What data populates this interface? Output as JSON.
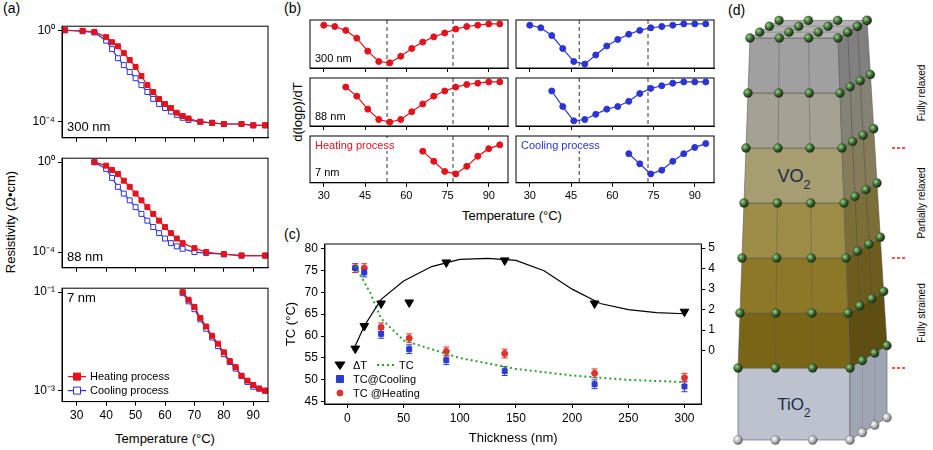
{
  "chart_data": [
    {
      "panel_label": "(a)",
      "type": "line",
      "y_label": "Resistivity (Ω•cm)",
      "x_label": "Temperature (°C)",
      "log": "y",
      "grid": false,
      "subplots": [
        {
          "annotation": "300 nm",
          "tick_labels": "y",
          "xlim": [
            25,
            95
          ],
          "xticks": [
            30,
            40,
            50,
            60,
            70,
            80,
            90
          ],
          "ylim": [
            2e-05,
            1.5
          ],
          "yticks": [
            {
              "value": 1,
              "label": "10⁰"
            },
            {
              "value": 0.0001,
              "label": "10⁻⁴"
            }
          ],
          "x": [
            26,
            32,
            36,
            40,
            42,
            44,
            46,
            48,
            50,
            52,
            54,
            56,
            58,
            60,
            62,
            64,
            66,
            68,
            72,
            76,
            80,
            86,
            90,
            94
          ],
          "series": [
            {
              "name": "Heating process",
              "color": "#e3121b",
              "marker": "square",
              "line_style": "solid",
              "values": [
                1,
                0.95,
                0.85,
                0.5,
                0.3,
                0.2,
                0.1,
                0.05,
                0.025,
                0.01,
                0.004,
                0.002,
                0.001,
                0.0006,
                0.0004,
                0.00025,
                0.00018,
                0.00014,
                0.0001,
                9e-05,
                8e-05,
                8e-05,
                7e-05,
                7e-05
              ]
            },
            {
              "name": "Cooling process",
              "color": "#2b35d6",
              "marker": "open_square",
              "line_style": "solid",
              "values": [
                1,
                0.9,
                0.8,
                0.35,
                0.15,
                0.06,
                0.03,
                0.015,
                0.008,
                0.004,
                0.002,
                0.001,
                0.0006,
                0.0004,
                0.00028,
                0.0002,
                0.00015,
                0.00012,
                0.0001,
                9e-05,
                8e-05,
                8e-05,
                7e-05,
                7e-05
              ]
            }
          ]
        },
        {
          "annotation": "88 nm",
          "tick_labels": "y",
          "xlim": [
            25,
            95
          ],
          "xticks": [
            30,
            40,
            50,
            60,
            70,
            80,
            90
          ],
          "ylim": [
            2e-05,
            1.5
          ],
          "yticks": [
            {
              "value": 1,
              "label": "10⁰"
            },
            {
              "value": 0.0001,
              "label": "10⁻⁴"
            }
          ],
          "x": [
            36,
            40,
            42,
            44,
            46,
            48,
            50,
            52,
            54,
            56,
            58,
            60,
            62,
            64,
            66,
            70,
            74,
            80,
            86,
            94
          ],
          "series": [
            {
              "name": "Heating process",
              "color": "#e3121b",
              "marker": "square",
              "line_style": "solid",
              "values": [
                1,
                0.7,
                0.45,
                0.3,
                0.15,
                0.08,
                0.04,
                0.02,
                0.01,
                0.005,
                0.0025,
                0.0013,
                0.0007,
                0.0004,
                0.00025,
                0.00015,
                0.0001,
                8e-05,
                7e-05,
                7e-05
              ]
            },
            {
              "name": "Cooling process",
              "color": "#2b35d6",
              "marker": "open_square",
              "line_style": "solid",
              "values": [
                1,
                0.5,
                0.2,
                0.08,
                0.04,
                0.02,
                0.01,
                0.005,
                0.0025,
                0.0013,
                0.0007,
                0.0004,
                0.00025,
                0.00018,
                0.00014,
                0.0001,
                9e-05,
                8e-05,
                7e-05,
                7e-05
              ]
            }
          ]
        },
        {
          "annotation": "7 nm",
          "legend": "lower left",
          "xlim": [
            25,
            95
          ],
          "xticks": [
            30,
            40,
            50,
            60,
            70,
            80,
            90
          ],
          "ylim": [
            0.0006,
            0.12
          ],
          "yticks": [
            {
              "value": 0.1,
              "label": "10⁻¹"
            },
            {
              "value": 0.001,
              "label": "10⁻³"
            }
          ],
          "x": [
            66,
            68,
            70,
            72,
            74,
            76,
            78,
            80,
            82,
            84,
            86,
            88,
            90,
            92,
            94
          ],
          "series": [
            {
              "name": "Heating process",
              "color": "#e3121b",
              "marker": "square",
              "line_style": "solid",
              "values": [
                0.1,
                0.07,
                0.05,
                0.03,
                0.02,
                0.013,
                0.009,
                0.006,
                0.004,
                0.003,
                0.002,
                0.0016,
                0.0013,
                0.0011,
                0.001
              ]
            },
            {
              "name": "Cooling process",
              "color": "#2b35d6",
              "marker": "open_square",
              "line_style": "solid",
              "values": [
                0.095,
                0.065,
                0.045,
                0.028,
                0.018,
                0.012,
                0.008,
                0.0055,
                0.0038,
                0.0028,
                0.002,
                0.0015,
                0.0012,
                0.0011,
                0.001
              ]
            }
          ]
        }
      ]
    },
    {
      "panel_label": "(b)",
      "type": "line",
      "y_label": "d(logρ)/dT",
      "x_label": "Temperature (°C)",
      "grid": false,
      "tick_labels": "x",
      "xlim": [
        25,
        97
      ],
      "xticks": [
        30,
        45,
        60,
        75,
        90
      ],
      "ylim": [
        -0.35,
        0.02
      ],
      "yticks": [],
      "rows": [
        "300 nm",
        "88 nm",
        "7 nm"
      ],
      "x": [
        30,
        34,
        38,
        42,
        46,
        50,
        54,
        58,
        62,
        66,
        70,
        74,
        78,
        82,
        86,
        90,
        94
      ],
      "series": [
        {
          "name": "Heating process",
          "color": "#e3121b",
          "marker": "circle",
          "line_style": "solid",
          "vlines": [
            53,
            77
          ],
          "values": [
            [
              -0.02,
              -0.03,
              -0.06,
              -0.12,
              -0.22,
              -0.3,
              -0.31,
              -0.26,
              -0.2,
              -0.15,
              -0.11,
              -0.08,
              -0.05,
              -0.03,
              -0.02,
              -0.01,
              -0.01
            ],
            [
              null,
              null,
              -0.05,
              -0.12,
              -0.22,
              -0.3,
              -0.32,
              -0.3,
              -0.24,
              -0.18,
              -0.12,
              -0.08,
              -0.05,
              -0.03,
              -0.02,
              -0.01,
              -0.01
            ],
            [
              null,
              null,
              null,
              null,
              null,
              null,
              null,
              null,
              null,
              -0.1,
              -0.18,
              -0.26,
              -0.28,
              -0.22,
              -0.14,
              -0.08,
              -0.05
            ]
          ]
        },
        {
          "name": "Cooling process",
          "color": "#2b35d6",
          "marker": "circle",
          "line_style": "solid",
          "vlines": [
            48,
            73
          ],
          "values": [
            [
              -0.02,
              -0.04,
              -0.1,
              -0.2,
              -0.3,
              -0.32,
              -0.25,
              -0.18,
              -0.13,
              -0.09,
              -0.06,
              -0.04,
              -0.03,
              -0.02,
              -0.01,
              -0.01,
              -0.01
            ],
            [
              null,
              null,
              -0.08,
              -0.2,
              -0.31,
              -0.3,
              -0.26,
              -0.22,
              -0.2,
              -0.16,
              -0.1,
              -0.06,
              -0.04,
              -0.02,
              -0.01,
              -0.01,
              -0.01
            ],
            [
              null,
              null,
              null,
              null,
              null,
              null,
              null,
              null,
              null,
              -0.12,
              -0.2,
              -0.28,
              -0.25,
              -0.18,
              -0.12,
              -0.07,
              -0.04
            ]
          ]
        }
      ]
    },
    {
      "panel_label": "(c)",
      "type": "scatter",
      "x_label": "Thickness (nm)",
      "y_label": "TC (°C)",
      "grid": false,
      "legend": "lower left",
      "xlim": [
        -20,
        315
      ],
      "xticks": [
        0,
        50,
        100,
        150,
        200,
        250,
        300
      ],
      "ylim": [
        44.5,
        81
      ],
      "yticks": [
        45,
        50,
        55,
        60,
        65,
        70,
        75,
        80
      ],
      "y2lim": [
        -2.6,
        5.2
      ],
      "y2ticks": [
        0,
        1,
        2,
        3,
        4,
        5
      ],
      "series": [
        {
          "name": "ΔT",
          "axis": "y2",
          "color": "#000000",
          "marker": "triangle_down",
          "line_style": "none",
          "x": [
            7,
            15,
            30,
            55,
            88,
            140,
            220,
            300
          ],
          "values": [
            0.1,
            1.2,
            2.3,
            2.35,
            4.3,
            4.4,
            2.3,
            1.9
          ]
        },
        {
          "axis": "y2",
          "color": "#000000",
          "marker": "none",
          "line_style": "solid",
          "x": [
            5,
            15,
            30,
            50,
            75,
            100,
            125,
            150,
            175,
            200,
            225,
            250,
            275,
            300
          ],
          "values": [
            0,
            1.2,
            2.5,
            3.4,
            4.1,
            4.45,
            4.5,
            4.4,
            3.9,
            3.0,
            2.3,
            2.0,
            1.85,
            1.8
          ]
        },
        {
          "name": "TC",
          "color": "#2ca02c",
          "marker": "none",
          "line_style": "dotted",
          "x": [
            7,
            20,
            30,
            50,
            100,
            150,
            200,
            250,
            300
          ],
          "values": [
            76,
            70,
            64,
            59,
            55,
            52.5,
            51,
            50,
            49.5
          ]
        },
        {
          "name": "TC@Cooling",
          "color": "#2b3bd0",
          "marker": "square",
          "line_style": "none",
          "x": [
            7,
            15,
            30,
            55,
            88,
            140,
            220,
            300
          ],
          "values": [
            75.5,
            74.5,
            60.5,
            57,
            54.5,
            52,
            49,
            48.5
          ],
          "errors": [
            1,
            1,
            1,
            1,
            1,
            1,
            1,
            1.2
          ]
        },
        {
          "name": "TC @Heating",
          "color": "#e0312d",
          "marker": "circle",
          "line_style": "none",
          "x": [
            7,
            15,
            30,
            55,
            88,
            140,
            220,
            300
          ],
          "values": [
            75.5,
            75.5,
            62,
            59.5,
            56.5,
            56,
            51.5,
            50.5
          ],
          "errors": [
            1,
            1,
            1,
            1,
            1,
            1,
            1,
            1
          ]
        }
      ]
    }
  ],
  "diagram": {
    "panel_label": "(d)",
    "film": "VO2",
    "substrate": "TiO2",
    "regions": [
      "Fully relaxed",
      "Partially relaxed",
      "Fully strained"
    ]
  }
}
